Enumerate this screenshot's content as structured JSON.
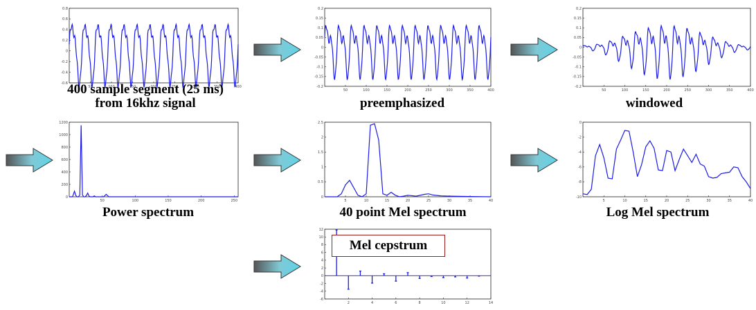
{
  "captions": {
    "segment_line1": "400 sample segment (25 ms)",
    "segment_line2": "from 16khz signal",
    "preemphasized": "preemphasized",
    "windowed": "windowed",
    "power": "Power spectrum",
    "mel": "40 point Mel spectrum",
    "logmel": "Log Mel spectrum",
    "cepstrum": "Mel cepstrum"
  },
  "colors": {
    "trace": "#1a1ae6",
    "arrow_fill": "#5fd3e8",
    "arrow_dark": "#555555",
    "box_border": "#9b1c1c"
  },
  "icons": [
    "arrow-right-icon"
  ],
  "chart_data": [
    {
      "id": "segment",
      "type": "line",
      "xlim": [
        0,
        400
      ],
      "ylim": [
        -0.6,
        0.8
      ],
      "xticks": [
        "50",
        "100",
        "150",
        "200",
        "250",
        "300",
        "350",
        "400"
      ],
      "yticks": [
        "0.8",
        "0.6",
        "0.4",
        "0.2",
        "0",
        "-0.2",
        "-0.4",
        "-0.6"
      ],
      "signal": {
        "cycles": 13,
        "amp": 0.6,
        "harmonic": 0.25,
        "envelope": "flat"
      }
    },
    {
      "id": "preemphasized",
      "type": "line",
      "xlim": [
        0,
        400
      ],
      "ylim": [
        -0.2,
        0.2
      ],
      "xticks": [
        "50",
        "100",
        "150",
        "200",
        "250",
        "300",
        "350",
        "400"
      ],
      "yticks": [
        "0.2",
        "0.15",
        "0.1",
        "0.05",
        "0",
        "-0.05",
        "-0.1",
        "-0.15",
        "-0.2"
      ],
      "signal": {
        "cycles": 13,
        "amp": 0.14,
        "harmonic": 0.6,
        "envelope": "flat"
      }
    },
    {
      "id": "windowed",
      "type": "line",
      "xlim": [
        0,
        400
      ],
      "ylim": [
        -0.2,
        0.2
      ],
      "xticks": [
        "50",
        "100",
        "150",
        "200",
        "250",
        "300",
        "350",
        "400"
      ],
      "yticks": [
        "0.2",
        "0.15",
        "0.1",
        "0.05",
        "0",
        "-0.05",
        "-0.1",
        "-0.15",
        "-0.2"
      ],
      "signal": {
        "cycles": 13,
        "amp": 0.14,
        "harmonic": 0.6,
        "envelope": "hamming"
      }
    },
    {
      "id": "power",
      "type": "line",
      "xlim": [
        0,
        256
      ],
      "ylim": [
        0,
        1200
      ],
      "xticks": [
        "50",
        "100",
        "150",
        "200",
        "250"
      ],
      "yticks": [
        "1200",
        "1000",
        "800",
        "600",
        "400",
        "200",
        "0"
      ],
      "x": [
        0,
        5,
        8,
        10,
        12,
        14,
        16,
        18,
        20,
        22,
        24,
        26,
        28,
        30,
        32,
        34,
        36,
        38,
        40,
        44,
        48,
        52,
        56,
        60,
        64,
        68,
        72,
        76,
        80,
        100,
        150,
        200,
        256
      ],
      "y": [
        0,
        0,
        90,
        20,
        0,
        0,
        30,
        1150,
        30,
        0,
        0,
        20,
        60,
        10,
        0,
        0,
        0,
        15,
        0,
        0,
        0,
        0,
        40,
        0,
        0,
        0,
        0,
        0,
        0,
        0,
        0,
        0,
        0
      ]
    },
    {
      "id": "mel",
      "type": "line",
      "xlim": [
        0,
        40
      ],
      "ylim": [
        0,
        2.5
      ],
      "xticks": [
        "5",
        "10",
        "15",
        "20",
        "25",
        "30",
        "35",
        "40"
      ],
      "yticks": [
        "2.5",
        "2",
        "1.5",
        "1",
        "0.5",
        "0"
      ],
      "x": [
        0,
        3,
        4,
        5,
        6,
        7,
        8,
        9,
        10,
        11,
        12,
        13,
        14,
        15,
        16,
        17,
        18,
        19,
        20,
        22,
        24,
        25,
        26,
        28,
        30,
        35,
        40
      ],
      "y": [
        0,
        0,
        0.1,
        0.4,
        0.55,
        0.3,
        0.05,
        0,
        0.1,
        2.4,
        2.45,
        1.9,
        0.1,
        0.05,
        0.15,
        0.05,
        0,
        0.02,
        0.05,
        0.02,
        0.08,
        0.1,
        0.06,
        0.03,
        0.02,
        0.01,
        0
      ]
    },
    {
      "id": "logmel",
      "type": "line",
      "xlim": [
        0,
        40
      ],
      "ylim": [
        -10,
        0
      ],
      "xticks": [
        "5",
        "10",
        "15",
        "20",
        "25",
        "30",
        "35",
        "40"
      ],
      "yticks": [
        "0",
        "-2",
        "-4",
        "-6",
        "-8",
        "-10"
      ],
      "x": [
        0,
        1,
        2,
        3,
        4,
        5,
        6,
        7,
        8,
        9,
        10,
        11,
        12,
        13,
        14,
        15,
        16,
        17,
        18,
        19,
        20,
        21,
        22,
        23,
        24,
        25,
        26,
        27,
        28,
        29,
        30,
        31,
        32,
        33,
        34,
        35,
        36,
        37,
        38,
        39,
        40
      ],
      "y": [
        -9.6,
        -9.7,
        -9.0,
        -4.5,
        -3.0,
        -4.8,
        -7.5,
        -7.6,
        -3.6,
        -2.4,
        -1.1,
        -1.2,
        -4.0,
        -7.3,
        -5.7,
        -3.3,
        -2.5,
        -3.5,
        -6.4,
        -6.5,
        -3.8,
        -4.0,
        -6.5,
        -5.0,
        -3.6,
        -4.5,
        -5.4,
        -4.3,
        -5.6,
        -5.9,
        -7.3,
        -7.5,
        -7.4,
        -6.9,
        -6.8,
        -6.7,
        -6.0,
        -6.1,
        -7.3,
        -8.0,
        -8.9
      ]
    },
    {
      "id": "cepstrum",
      "type": "stem",
      "xlim": [
        0,
        14
      ],
      "ylim": [
        -6,
        12
      ],
      "xticks": [
        "2",
        "4",
        "6",
        "8",
        "10",
        "12",
        "14"
      ],
      "yticks": [
        "12",
        "10",
        "8",
        "6",
        "4",
        "2",
        "0",
        "-2",
        "-4",
        "-6"
      ],
      "x": [
        1,
        2,
        3,
        4,
        5,
        6,
        7,
        8,
        9,
        10,
        11,
        12,
        13
      ],
      "y": [
        11.8,
        -3.5,
        1.2,
        -1.9,
        0.5,
        -1.4,
        0.8,
        -0.7,
        -0.2,
        -0.5,
        -0.3,
        -0.6,
        -0.1
      ]
    }
  ]
}
